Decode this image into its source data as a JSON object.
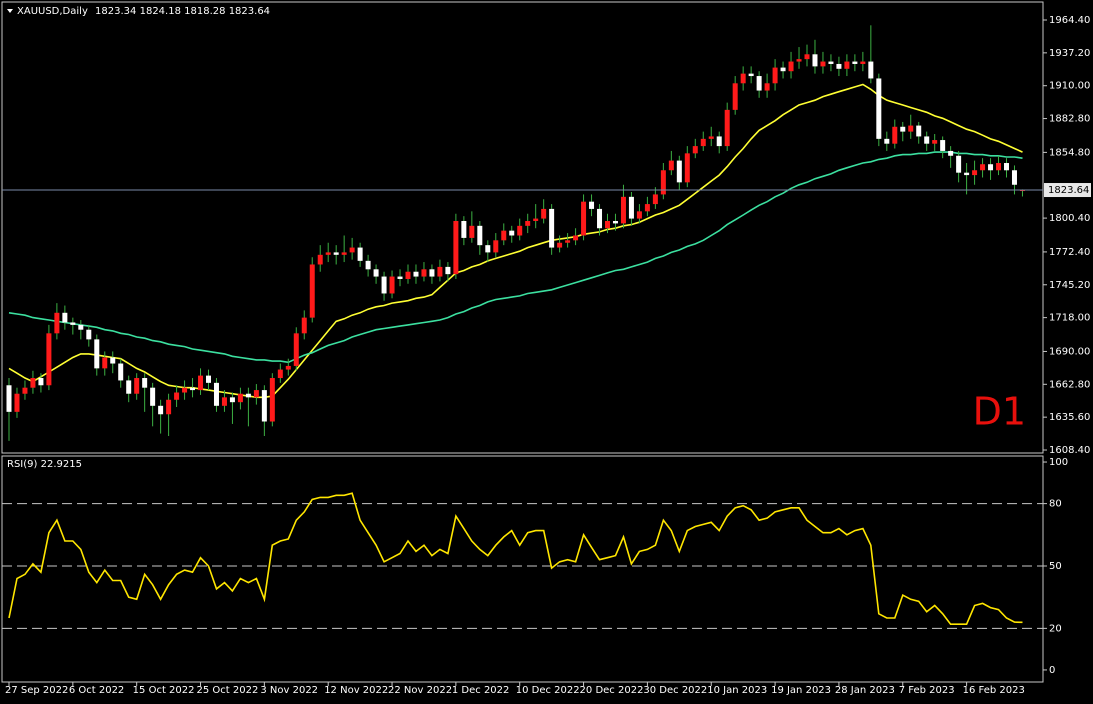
{
  "chart_data": [
    {
      "type": "candlestick",
      "title": "XAUUSD,Daily",
      "categories": [
        "27 Sep 2022",
        null,
        null,
        null,
        null,
        null,
        null,
        null,
        "6 Oct 2022",
        null,
        null,
        null,
        null,
        null,
        null,
        null,
        "15 Oct 2022",
        null,
        null,
        null,
        null,
        null,
        null,
        null,
        "25 Oct 2022",
        null,
        null,
        null,
        null,
        null,
        null,
        null,
        "3 Nov 2022",
        null,
        null,
        null,
        null,
        null,
        null,
        null,
        "12 Nov 2022",
        null,
        null,
        null,
        null,
        null,
        null,
        null,
        "22 Nov 2022",
        null,
        null,
        null,
        null,
        null,
        null,
        null,
        "1 Dec 2022",
        null,
        null,
        null,
        null,
        null,
        null,
        null,
        "10 Dec 2022",
        null,
        null,
        null,
        null,
        null,
        null,
        null,
        "20 Dec 2022",
        null,
        null,
        null,
        null,
        null,
        null,
        null,
        "30 Dec 2022",
        null,
        null,
        null,
        null,
        null,
        null,
        null,
        "10 Jan 2023",
        null,
        null,
        null,
        null,
        null,
        null,
        null,
        "19 Jan 2023",
        null,
        null,
        null,
        null,
        null,
        null,
        null,
        "28 Jan 2023",
        null,
        null,
        null,
        null,
        null,
        null,
        null,
        "7 Feb 2023",
        null,
        null,
        null,
        null,
        null,
        null,
        null,
        "16 Feb 2023",
        null,
        null,
        null,
        null,
        null,
        null,
        null
      ],
      "open": [
        1662,
        1640,
        1655,
        1660,
        1668,
        1662,
        1705,
        1722,
        1714,
        1712,
        1708,
        1700,
        1676,
        1685,
        1680,
        1666,
        1655,
        1668,
        1660,
        1645,
        1638,
        1650,
        1656,
        1660,
        1658,
        1670,
        1664,
        1645,
        1652,
        1648,
        1655,
        1652,
        1658,
        1632,
        1668,
        1675,
        1678,
        1705,
        1718,
        1762,
        1770,
        1772,
        1770,
        1772,
        1776,
        1765,
        1758,
        1752,
        1738,
        1752,
        1750,
        1756,
        1752,
        1758,
        1752,
        1760,
        1754,
        1798,
        1784,
        1794,
        1778,
        1772,
        1782,
        1790,
        1786,
        1794,
        1798,
        1800,
        1808,
        1776,
        1780,
        1782,
        1786,
        1814,
        1808,
        1792,
        1798,
        1796,
        1818,
        1800,
        1806,
        1812,
        1820,
        1840,
        1848,
        1830,
        1854,
        1860,
        1866,
        1868,
        1860,
        1890,
        1912,
        1920,
        1918,
        1906,
        1912,
        1925,
        1922,
        1930,
        1932,
        1936,
        1926,
        1930,
        1928,
        1924,
        1930,
        1928,
        1930,
        1916,
        1866,
        1862,
        1876,
        1872,
        1877,
        1868,
        1862,
        1865,
        1856,
        1852,
        1838,
        1836,
        1840,
        1845,
        1840,
        1846,
        1840,
        1823.34
      ],
      "high": [
        1668,
        1660,
        1666,
        1674,
        1672,
        1712,
        1730,
        1728,
        1718,
        1716,
        1712,
        1704,
        1690,
        1690,
        1684,
        1670,
        1672,
        1672,
        1664,
        1650,
        1655,
        1662,
        1666,
        1668,
        1676,
        1675,
        1668,
        1658,
        1656,
        1660,
        1660,
        1663,
        1662,
        1672,
        1680,
        1684,
        1710,
        1724,
        1768,
        1778,
        1780,
        1778,
        1786,
        1784,
        1780,
        1770,
        1762,
        1756,
        1757,
        1758,
        1762,
        1762,
        1764,
        1762,
        1766,
        1764,
        1804,
        1802,
        1806,
        1798,
        1782,
        1788,
        1796,
        1794,
        1800,
        1804,
        1812,
        1816,
        1812,
        1786,
        1788,
        1792,
        1820,
        1820,
        1812,
        1804,
        1804,
        1828,
        1822,
        1812,
        1818,
        1826,
        1846,
        1856,
        1852,
        1860,
        1866,
        1872,
        1876,
        1872,
        1896,
        1918,
        1926,
        1926,
        1922,
        1920,
        1932,
        1930,
        1938,
        1942,
        1944,
        1948,
        1938,
        1936,
        1934,
        1936,
        1936,
        1938,
        1960,
        1920,
        1872,
        1882,
        1880,
        1886,
        1880,
        1872,
        1870,
        1868,
        1860,
        1856,
        1846,
        1848,
        1850,
        1850,
        1852,
        1850,
        1844,
        1824.18
      ],
      "low": [
        1616,
        1635,
        1650,
        1655,
        1656,
        1658,
        1700,
        1708,
        1704,
        1700,
        1694,
        1670,
        1670,
        1672,
        1660,
        1648,
        1650,
        1640,
        1628,
        1622,
        1620,
        1644,
        1650,
        1652,
        1654,
        1658,
        1640,
        1640,
        1630,
        1642,
        1628,
        1646,
        1620,
        1628,
        1664,
        1670,
        1674,
        1700,
        1714,
        1756,
        1764,
        1762,
        1764,
        1766,
        1760,
        1752,
        1746,
        1732,
        1734,
        1744,
        1746,
        1746,
        1748,
        1746,
        1748,
        1748,
        1750,
        1778,
        1780,
        1770,
        1764,
        1768,
        1778,
        1780,
        1782,
        1788,
        1792,
        1796,
        1770,
        1772,
        1776,
        1778,
        1782,
        1802,
        1786,
        1788,
        1790,
        1792,
        1794,
        1796,
        1802,
        1808,
        1816,
        1836,
        1824,
        1826,
        1850,
        1856,
        1860,
        1854,
        1856,
        1886,
        1906,
        1912,
        1900,
        1900,
        1906,
        1916,
        1916,
        1924,
        1926,
        1920,
        1920,
        1922,
        1918,
        1918,
        1922,
        1922,
        1912,
        1860,
        1856,
        1858,
        1864,
        1866,
        1862,
        1856,
        1856,
        1850,
        1842,
        1830,
        1820,
        1828,
        1834,
        1832,
        1836,
        1834,
        1820,
        1818.28
      ],
      "close": [
        1640,
        1655,
        1660,
        1668,
        1662,
        1705,
        1722,
        1714,
        1712,
        1708,
        1700,
        1676,
        1685,
        1680,
        1666,
        1655,
        1668,
        1660,
        1645,
        1638,
        1650,
        1656,
        1660,
        1658,
        1670,
        1664,
        1645,
        1652,
        1648,
        1655,
        1652,
        1658,
        1632,
        1668,
        1675,
        1678,
        1705,
        1718,
        1762,
        1770,
        1772,
        1770,
        1772,
        1776,
        1765,
        1758,
        1752,
        1738,
        1752,
        1750,
        1756,
        1752,
        1758,
        1752,
        1760,
        1754,
        1798,
        1784,
        1794,
        1778,
        1772,
        1782,
        1790,
        1786,
        1794,
        1798,
        1800,
        1808,
        1776,
        1780,
        1782,
        1786,
        1814,
        1808,
        1792,
        1798,
        1796,
        1818,
        1800,
        1806,
        1812,
        1820,
        1840,
        1848,
        1830,
        1854,
        1860,
        1866,
        1868,
        1860,
        1890,
        1912,
        1920,
        1918,
        1906,
        1912,
        1925,
        1922,
        1930,
        1932,
        1936,
        1926,
        1930,
        1928,
        1924,
        1930,
        1928,
        1930,
        1916,
        1866,
        1862,
        1876,
        1872,
        1877,
        1868,
        1862,
        1865,
        1856,
        1852,
        1838,
        1836,
        1840,
        1845,
        1840,
        1846,
        1840,
        1828,
        1823.64
      ],
      "up_color": "#ff1a1a",
      "down_color": "#ffffff",
      "wick_color": "#3cb043",
      "series": [
        {
          "color": "#ffff33",
          "values": [
            1676,
            1672,
            1668,
            1665,
            1669,
            1673,
            1677,
            1681,
            1685,
            1688,
            1688,
            1687,
            1686,
            1685,
            1684,
            1680,
            1676,
            1673,
            1669,
            1665,
            1662,
            1661,
            1660,
            1660,
            1659,
            1658,
            1657,
            1656,
            1655,
            1654,
            1653,
            1652,
            1652,
            1653,
            1660,
            1667,
            1675,
            1683,
            1691,
            1699,
            1707,
            1715,
            1717,
            1720,
            1722,
            1725,
            1727,
            1728,
            1730,
            1731,
            1732,
            1734,
            1735,
            1737,
            1743,
            1749,
            1755,
            1757,
            1760,
            1762,
            1765,
            1767,
            1769,
            1771,
            1773,
            1776,
            1778,
            1780,
            1782,
            1783,
            1784,
            1785,
            1787,
            1788,
            1789,
            1791,
            1792,
            1794,
            1795,
            1797,
            1800,
            1803,
            1805,
            1808,
            1811,
            1816,
            1821,
            1826,
            1831,
            1836,
            1843,
            1851,
            1858,
            1866,
            1873,
            1877,
            1881,
            1886,
            1890,
            1894,
            1896,
            1898,
            1901,
            1903,
            1905,
            1907,
            1909,
            1911,
            1907,
            1902,
            1898,
            1896,
            1894,
            1892,
            1890,
            1888,
            1885,
            1883,
            1880,
            1877,
            1874,
            1872,
            1869,
            1866,
            1864,
            1861,
            1858,
            1855
          ]
        },
        {
          "color": "#3ce0a0",
          "values": [
            1722,
            1721,
            1720,
            1718,
            1717,
            1716,
            1715,
            1714,
            1713,
            1712,
            1711,
            1710,
            1708,
            1707,
            1705,
            1704,
            1702,
            1701,
            1699,
            1698,
            1696,
            1695,
            1694,
            1692,
            1691,
            1690,
            1689,
            1688,
            1686,
            1685,
            1684,
            1683,
            1683,
            1682,
            1682,
            1681,
            1684,
            1687,
            1689,
            1692,
            1695,
            1697,
            1699,
            1702,
            1704,
            1706,
            1708,
            1709,
            1710,
            1711,
            1712,
            1713,
            1714,
            1715,
            1716,
            1718,
            1721,
            1723,
            1726,
            1728,
            1731,
            1733,
            1734,
            1735,
            1736,
            1738,
            1739,
            1740,
            1741,
            1743,
            1745,
            1747,
            1749,
            1751,
            1753,
            1755,
            1757,
            1758,
            1760,
            1762,
            1764,
            1767,
            1769,
            1772,
            1774,
            1777,
            1779,
            1782,
            1786,
            1790,
            1795,
            1799,
            1803,
            1807,
            1811,
            1814,
            1818,
            1821,
            1825,
            1828,
            1830,
            1833,
            1835,
            1837,
            1840,
            1842,
            1844,
            1846,
            1847,
            1849,
            1850,
            1852,
            1853,
            1853,
            1854,
            1854,
            1855,
            1855,
            1855,
            1854,
            1854,
            1853,
            1853,
            1852,
            1852,
            1851,
            1851,
            1850
          ]
        }
      ],
      "ylim": [
        1605.1,
        1979.3
      ],
      "yticks": [
        {
          "value": 1964.4,
          "label": "1964.40"
        },
        {
          "value": 1937.2,
          "label": "1937.20"
        },
        {
          "value": 1910,
          "label": "1910.00"
        },
        {
          "value": 1882.8,
          "label": "1882.80"
        },
        {
          "value": 1854.8,
          "label": "1854.80"
        },
        {
          "value": 1800.4,
          "label": "1800.40"
        },
        {
          "value": 1772.4,
          "label": "1772.40"
        },
        {
          "value": 1745.2,
          "label": "1745.20"
        },
        {
          "value": 1718,
          "label": "1718.00"
        },
        {
          "value": 1690,
          "label": "1690.00"
        },
        {
          "value": 1662.8,
          "label": "1662.80"
        },
        {
          "value": 1635.6,
          "label": "1635.60"
        },
        {
          "value": 1608.4,
          "label": "1608.40"
        }
      ],
      "grid": false,
      "price_line_color": "#7a8aa8",
      "annotation": "D1",
      "annotation_color": "#e8100c"
    },
    {
      "type": "line",
      "title": "RSI(9) 22.9215",
      "color": "#ffe600",
      "values": [
        25,
        44,
        46,
        51,
        47,
        66,
        72,
        62,
        62,
        58,
        47,
        42,
        48,
        43,
        43,
        35,
        34,
        46,
        41,
        34,
        41,
        46,
        48,
        47,
        54,
        50,
        39,
        42,
        38,
        44,
        42,
        44,
        34,
        60,
        62,
        63,
        72,
        76,
        82,
        83,
        83,
        84,
        84,
        85,
        72,
        66,
        60,
        52,
        54,
        56,
        62,
        57,
        60,
        55,
        58,
        56,
        74,
        68,
        62,
        58,
        55,
        60,
        64,
        67,
        60,
        66,
        67,
        67,
        49,
        52,
        53,
        52,
        65,
        59,
        53,
        54,
        55,
        64,
        51,
        57,
        58,
        60,
        72,
        67,
        57,
        67,
        69,
        70,
        71,
        67,
        74,
        78,
        79,
        77,
        72,
        73,
        76,
        77,
        78,
        78,
        72,
        69,
        66,
        66,
        68,
        65,
        67,
        68,
        60,
        27,
        25,
        25,
        36,
        34,
        33,
        28,
        31,
        27,
        22,
        22,
        22,
        31,
        32,
        30,
        29,
        25,
        23,
        22.9215
      ],
      "ylim": [
        -5.8,
        102.9
      ],
      "yticks": [
        0,
        20,
        50,
        80,
        100
      ],
      "levels": [
        20,
        50,
        80
      ]
    }
  ]
}
